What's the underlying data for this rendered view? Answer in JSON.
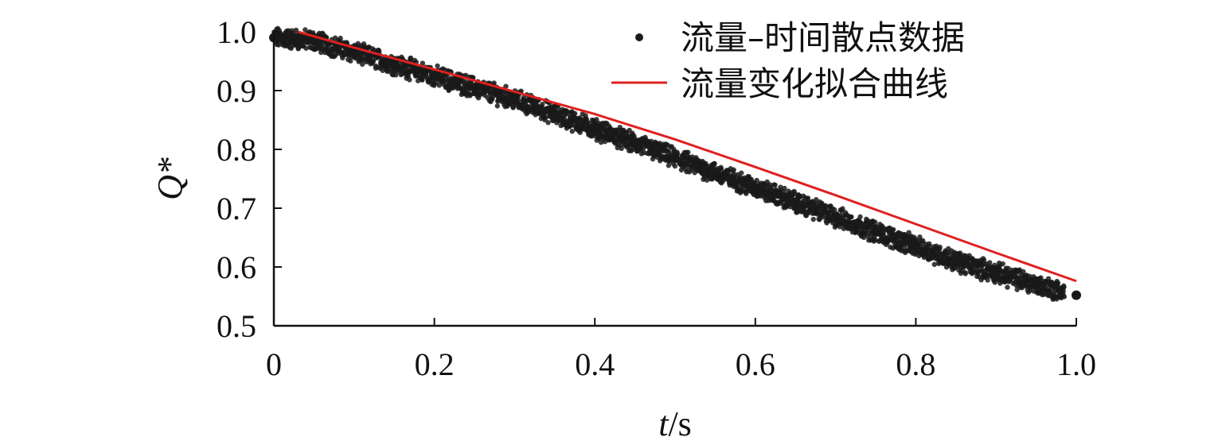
{
  "chart_data": {
    "type": "scatter",
    "title": "",
    "xlabel": "t/s",
    "ylabel": "Q*",
    "xlim": [
      0,
      1.0
    ],
    "ylim": [
      0.5,
      1.0
    ],
    "x_ticks": [
      0,
      0.2,
      0.4,
      0.6,
      0.8,
      1.0
    ],
    "x_tick_labels": [
      "0",
      "0.2",
      "0.4",
      "0.6",
      "0.8",
      "1.0"
    ],
    "y_ticks": [
      0.5,
      0.6,
      0.7,
      0.8,
      0.9,
      1.0
    ],
    "y_tick_labels": [
      "0.5",
      "0.6",
      "0.7",
      "0.8",
      "0.9",
      "1.0"
    ],
    "grid": false,
    "legend_position": "top-right",
    "series": [
      {
        "name": "流量–时间散点数据",
        "type": "scatter",
        "color": "#1a1a1a",
        "x": [
          0.0,
          0.05,
          0.1,
          0.15,
          0.2,
          0.25,
          0.3,
          0.35,
          0.4,
          0.45,
          0.5,
          0.55,
          0.6,
          0.65,
          0.7,
          0.75,
          0.8,
          0.85,
          0.9,
          0.95,
          1.0
        ],
        "y": [
          0.99,
          0.985,
          0.965,
          0.945,
          0.925,
          0.905,
          0.885,
          0.86,
          0.835,
          0.81,
          0.785,
          0.76,
          0.735,
          0.71,
          0.685,
          0.66,
          0.635,
          0.61,
          0.59,
          0.57,
          0.552
        ]
      },
      {
        "name": "流量变化拟合曲线",
        "type": "line",
        "color": "#e02020",
        "x": [
          0.03,
          0.1,
          0.2,
          0.3,
          0.4,
          0.5,
          0.6,
          0.7,
          0.8,
          0.9,
          1.0
        ],
        "y": [
          1.0,
          0.973,
          0.936,
          0.898,
          0.86,
          0.817,
          0.77,
          0.722,
          0.673,
          0.624,
          0.576
        ]
      }
    ]
  }
}
